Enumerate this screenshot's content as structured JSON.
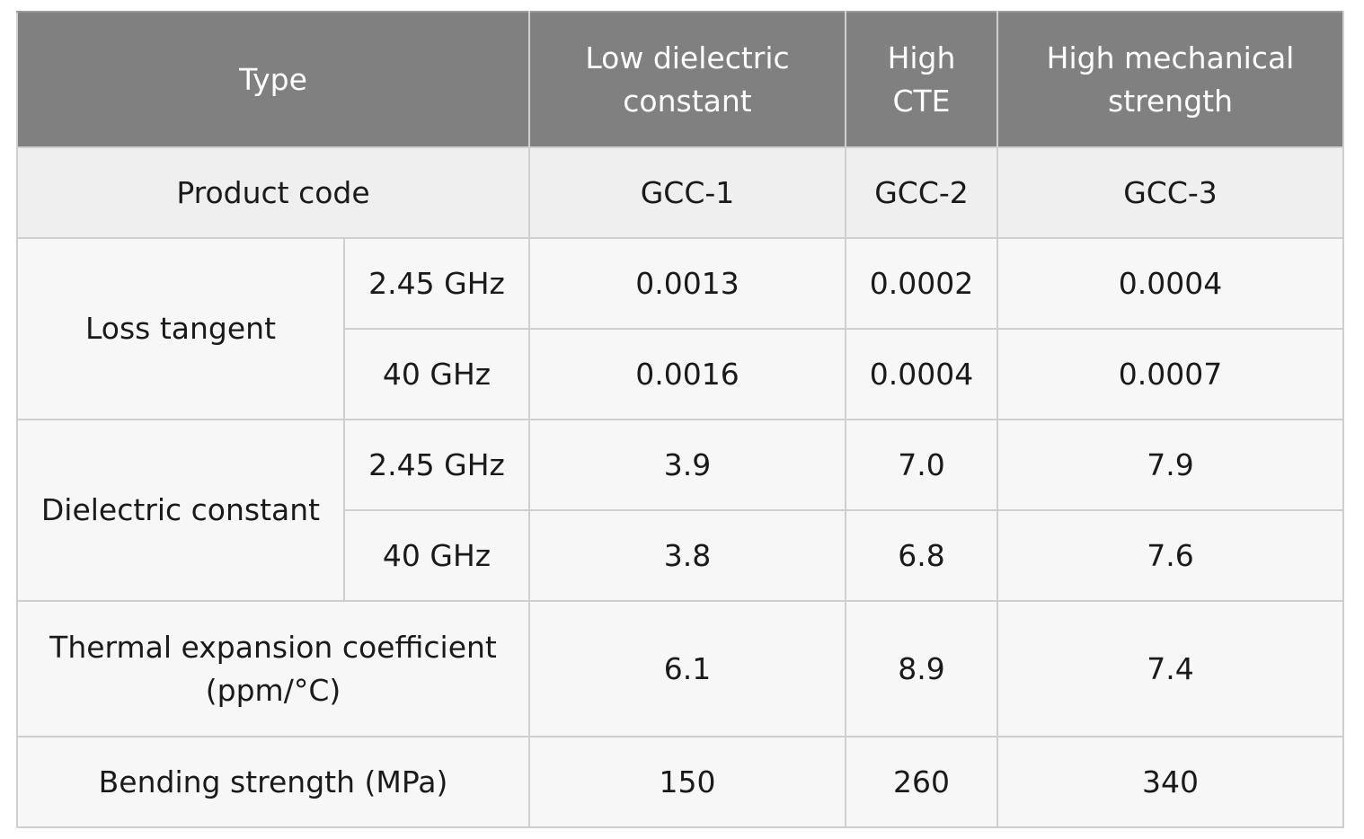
{
  "table": {
    "header": {
      "type_label": "Type",
      "columns": [
        {
          "line1": "Low dielectric",
          "line2": "constant"
        },
        {
          "line1": "High",
          "line2": "CTE"
        },
        {
          "line1": "High mechanical",
          "line2": "strength"
        }
      ]
    },
    "product_code": {
      "label": "Product code",
      "values": [
        "GCC-1",
        "GCC-2",
        "GCC-3"
      ]
    },
    "loss_tangent": {
      "label": "Loss tangent",
      "rows": [
        {
          "freq": "2.45 GHz",
          "values": [
            "0.0013",
            "0.0002",
            "0.0004"
          ]
        },
        {
          "freq": "40 GHz",
          "values": [
            "0.0016",
            "0.0004",
            "0.0007"
          ]
        }
      ]
    },
    "dielectric_constant": {
      "label": "Dielectric constant",
      "rows": [
        {
          "freq": "2.45 GHz",
          "values": [
            "3.9",
            "7.0",
            "7.9"
          ]
        },
        {
          "freq": "40 GHz",
          "values": [
            "3.8",
            "6.8",
            "7.6"
          ]
        }
      ]
    },
    "thermal_expansion": {
      "line1": "Thermal expansion coefficient",
      "line2": "(ppm/°C)",
      "values": [
        "6.1",
        "8.9",
        "7.4"
      ]
    },
    "bending_strength": {
      "label": "Bending strength (MPa)",
      "values": [
        "150",
        "260",
        "340"
      ]
    }
  }
}
